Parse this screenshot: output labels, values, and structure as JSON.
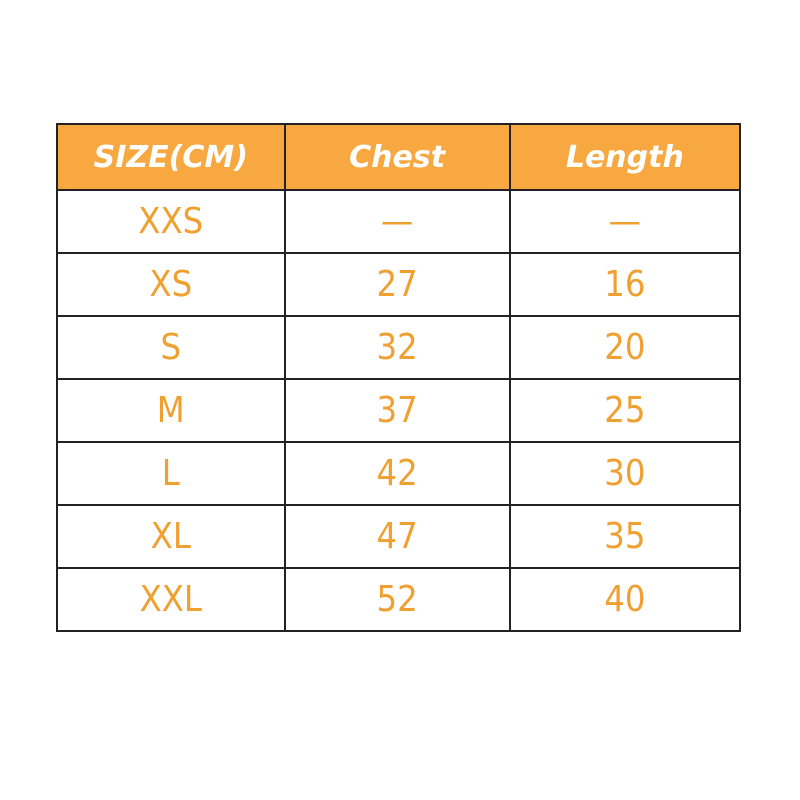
{
  "table": {
    "headers": [
      "SIZE(CM)",
      "Chest",
      "Length"
    ],
    "rows": [
      [
        "XXS",
        "—",
        "—"
      ],
      [
        "XS",
        "27",
        "16"
      ],
      [
        "S",
        "32",
        "20"
      ],
      [
        "M",
        "37",
        "25"
      ],
      [
        "L",
        "42",
        "30"
      ],
      [
        "XL",
        "47",
        "35"
      ],
      [
        "XXL",
        "52",
        "40"
      ]
    ]
  },
  "colors": {
    "header_bg": "#F7A840",
    "text": "#F0A030",
    "border": "#222222"
  }
}
